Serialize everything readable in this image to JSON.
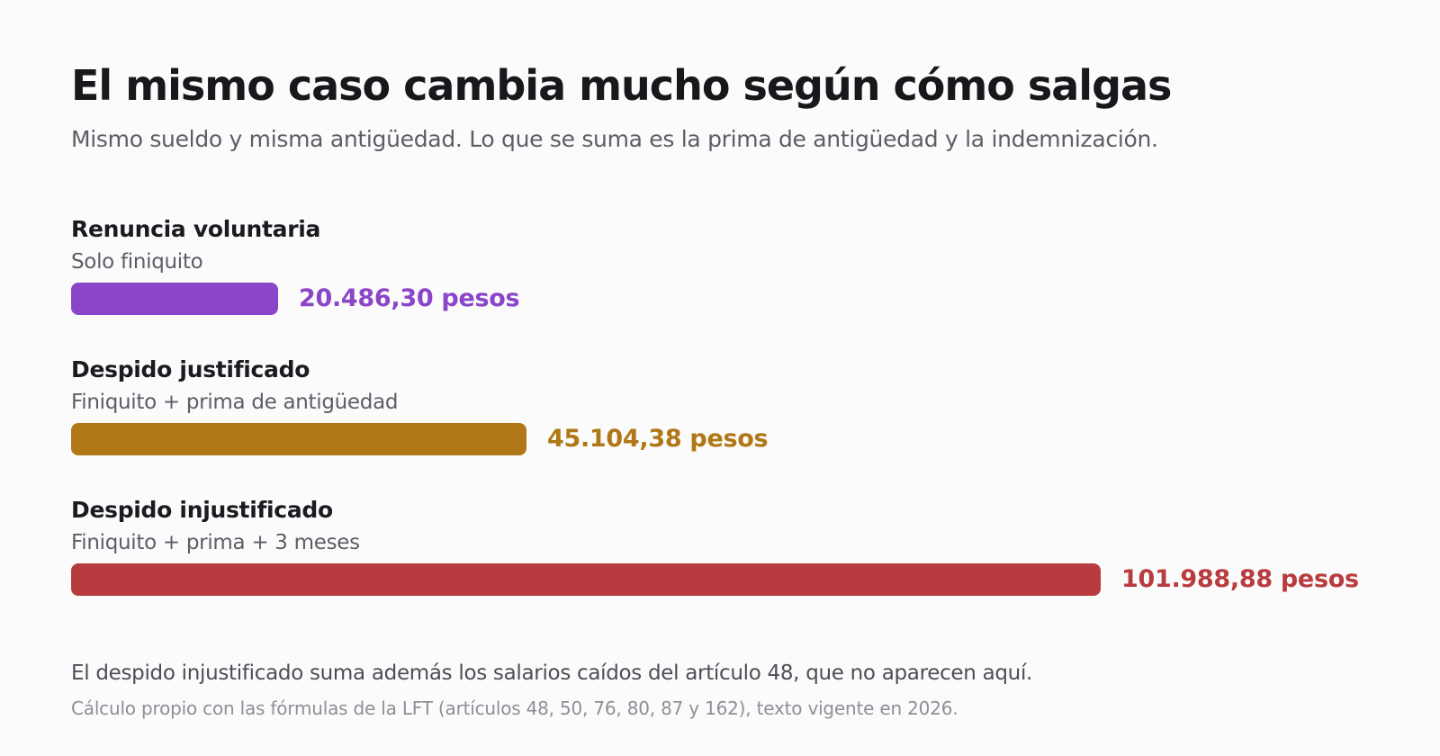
{
  "header": {
    "title": "El mismo caso cambia mucho según cómo salgas",
    "subtitle": "Mismo sueldo y misma antigüedad. Lo que se suma es la prima de antigüedad y la indemnización."
  },
  "chart_data": {
    "type": "bar",
    "orientation": "horizontal",
    "categories": [
      "Renuncia voluntaria",
      "Despido justificado",
      "Despido injustificado"
    ],
    "descriptions": [
      "Solo finiquito",
      "Finiquito + prima de antigüedad",
      "Finiquito + prima + 3 meses"
    ],
    "values": [
      20486.3,
      45104.38,
      101988.88
    ],
    "value_labels": [
      "20.486,30 pesos",
      "45.104,38 pesos",
      "101.988,88 pesos"
    ],
    "colors": [
      "#8b45c8",
      "#b07716",
      "#b83c3f"
    ],
    "xlim": [
      0,
      101988.88
    ],
    "grid": false
  },
  "footer": {
    "note": "El despido injustificado suma además los salarios caídos del artículo 48, que no aparecen aquí.",
    "source": "Cálculo propio con las fórmulas de la LFT (artículos 48, 50, 76, 80, 87 y 162), texto vigente en 2026."
  }
}
